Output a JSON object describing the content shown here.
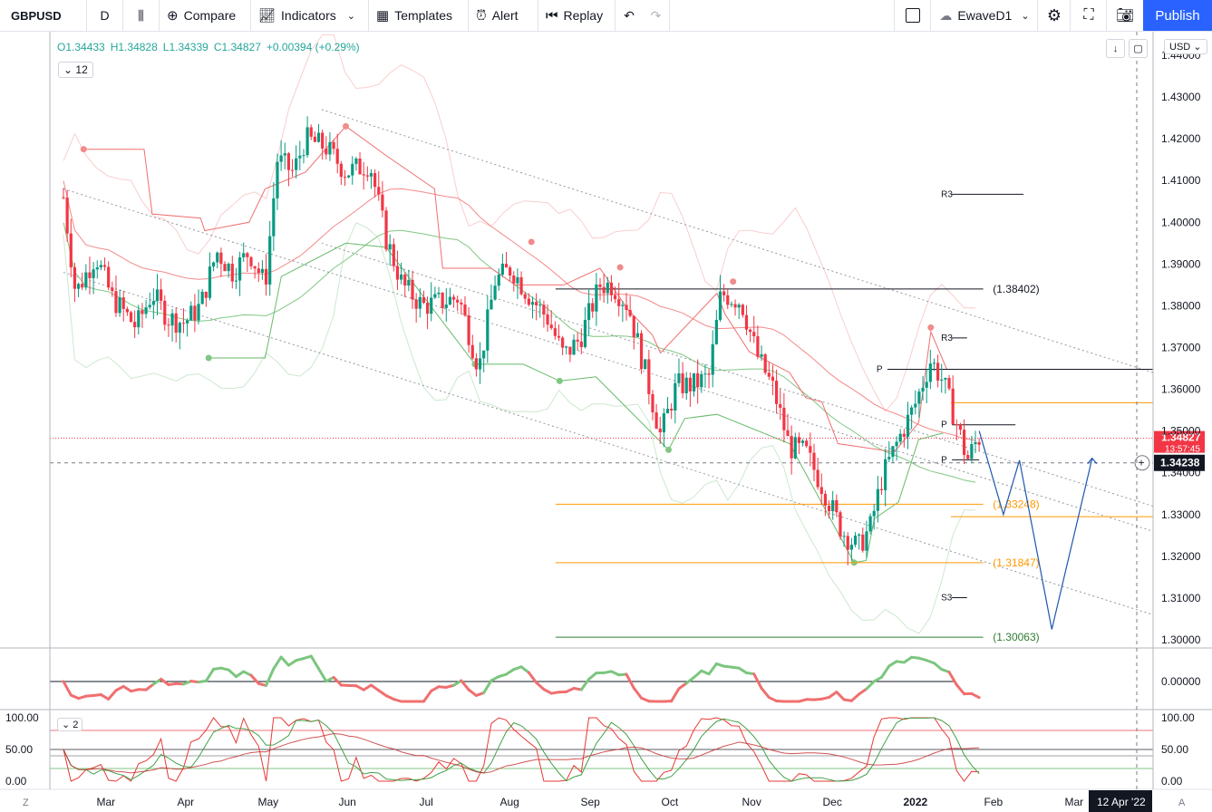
{
  "toolbar": {
    "symbol": "GBPUSD",
    "interval": "D",
    "compare": "Compare",
    "indicators": "Indicators",
    "templates": "Templates",
    "alert": "Alert",
    "replay": "Replay",
    "layout_name": "EwaveD1",
    "publish": "Publish"
  },
  "legend": {
    "o": "O1.34433",
    "h": "H1.34828",
    "l": "L1.34339",
    "c": "C1.34827",
    "chg": "+0.00394 (+0.29%)",
    "hidden_count": "12",
    "osc_count": "2",
    "currency": "USD"
  },
  "colors": {
    "up": "#26a69a",
    "candle_up": "#089981",
    "down": "#f23645",
    "bb": "#f7b9b9",
    "channel": "#9598a1",
    "orange": "#ff9800",
    "blue": "#2962ff"
  },
  "chart_data": {
    "type": "candlestick",
    "symbol": "GBPUSD",
    "interval": "D",
    "ylim": [
      1.296,
      1.445
    ],
    "yticks": [
      "1.30000",
      "1.31000",
      "1.32000",
      "1.33000",
      "1.34000",
      "1.35000",
      "1.36000",
      "1.37000",
      "1.38000",
      "1.39000",
      "1.40000",
      "1.41000",
      "1.42000",
      "1.43000",
      "1.44000"
    ],
    "xticks": [
      {
        "label": "Mar",
        "pos": 0.5
      },
      {
        "label": "Apr",
        "pos": 1.5
      },
      {
        "label": "May",
        "pos": 2.5
      },
      {
        "label": "Jun",
        "pos": 3.5
      },
      {
        "label": "Jul",
        "pos": 4.5
      },
      {
        "label": "Aug",
        "pos": 5.5
      },
      {
        "label": "Sep",
        "pos": 6.5
      },
      {
        "label": "Oct",
        "pos": 7.5
      },
      {
        "label": "Nov",
        "pos": 8.5
      },
      {
        "label": "Dec",
        "pos": 9.5
      },
      {
        "label": "2022",
        "pos": 10.5
      },
      {
        "label": "Feb",
        "pos": 11.5
      },
      {
        "label": "Mar",
        "pos": 12.5
      }
    ],
    "date_badge": "12 Apr '22",
    "close_path": [
      [
        0.0,
        1.406
      ],
      [
        0.15,
        1.383
      ],
      [
        0.4,
        1.392
      ],
      [
        0.6,
        1.382
      ],
      [
        0.9,
        1.375
      ],
      [
        1.1,
        1.383
      ],
      [
        1.3,
        1.377
      ],
      [
        1.5,
        1.376
      ],
      [
        1.7,
        1.38
      ],
      [
        1.9,
        1.393
      ],
      [
        2.1,
        1.388
      ],
      [
        2.3,
        1.393
      ],
      [
        2.5,
        1.385
      ],
      [
        2.65,
        1.415
      ],
      [
        2.85,
        1.412
      ],
      [
        3.0,
        1.42
      ],
      [
        3.25,
        1.418
      ],
      [
        3.5,
        1.412
      ],
      [
        3.8,
        1.414
      ],
      [
        4.0,
        1.396
      ],
      [
        4.2,
        1.385
      ],
      [
        4.45,
        1.38
      ],
      [
        4.7,
        1.381
      ],
      [
        4.9,
        1.382
      ],
      [
        5.15,
        1.365
      ],
      [
        5.35,
        1.386
      ],
      [
        5.55,
        1.389
      ],
      [
        5.75,
        1.383
      ],
      [
        6.0,
        1.377
      ],
      [
        6.2,
        1.368
      ],
      [
        6.4,
        1.372
      ],
      [
        6.65,
        1.385
      ],
      [
        6.8,
        1.385
      ],
      [
        7.0,
        1.38
      ],
      [
        7.2,
        1.365
      ],
      [
        7.4,
        1.349
      ],
      [
        7.6,
        1.361
      ],
      [
        7.8,
        1.361
      ],
      [
        8.0,
        1.363
      ],
      [
        8.15,
        1.383
      ],
      [
        8.4,
        1.381
      ],
      [
        8.6,
        1.368
      ],
      [
        8.8,
        1.36
      ],
      [
        9.0,
        1.346
      ],
      [
        9.2,
        1.345
      ],
      [
        9.4,
        1.337
      ],
      [
        9.65,
        1.326
      ],
      [
        9.85,
        1.322
      ],
      [
        10.0,
        1.327
      ],
      [
        10.15,
        1.339
      ],
      [
        10.35,
        1.348
      ],
      [
        10.55,
        1.356
      ],
      [
        10.75,
        1.367
      ],
      [
        10.9,
        1.362
      ],
      [
        11.0,
        1.356
      ],
      [
        11.1,
        1.35
      ],
      [
        11.2,
        1.343
      ],
      [
        11.3,
        1.347
      ],
      [
        11.35,
        1.3483
      ]
    ],
    "last_price": "1.34827",
    "countdown": "13:57:45",
    "crosshair_price": "1.34238",
    "levels": [
      {
        "label": "(1.38402)",
        "value": 1.38402
      },
      {
        "label": "(1.33248)",
        "value": 1.33248
      },
      {
        "label": "(1.31847)",
        "value": 1.31847
      },
      {
        "label": "(1.30063)",
        "value": 1.30063
      }
    ],
    "pivots": [
      {
        "label": "R3",
        "value": 1.4067
      },
      {
        "label": "R3",
        "value": 1.3723
      },
      {
        "label": "P",
        "value": 1.3648
      },
      {
        "label": "P",
        "value": 1.3515
      },
      {
        "label": "P",
        "value": 1.3431
      },
      {
        "label": "S3",
        "value": 1.3101
      }
    ],
    "projection": [
      [
        11.35,
        1.35
      ],
      [
        11.65,
        1.33
      ],
      [
        11.85,
        1.343
      ],
      [
        12.25,
        1.3025
      ],
      [
        12.75,
        1.3435
      ]
    ],
    "osc1": {
      "zero_label": "0.00000"
    },
    "osc2": {
      "levels": [
        "100.00",
        "50.00",
        "0.00"
      ]
    }
  }
}
